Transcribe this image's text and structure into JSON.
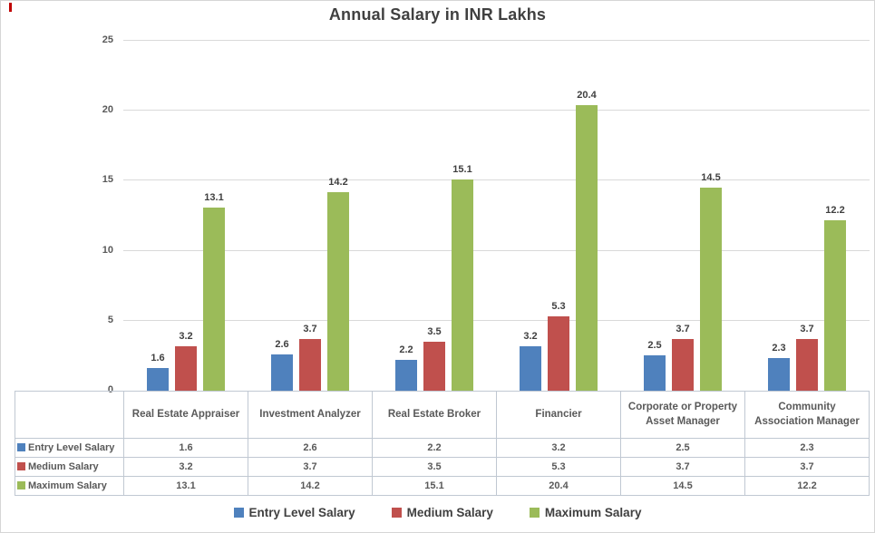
{
  "chart_data": {
    "type": "bar",
    "title": "Annual Salary in INR Lakhs",
    "categories": [
      "Real Estate Appraiser",
      "Investment Analyzer",
      "Real Estate Broker",
      "Financier",
      "Corporate or Property Asset Manager",
      "Community Association Manager"
    ],
    "series": [
      {
        "name": "Entry Level Salary",
        "color": "#4F81BD",
        "values": [
          1.6,
          2.6,
          2.2,
          3.2,
          2.5,
          2.3
        ]
      },
      {
        "name": "Medium Salary",
        "color": "#C0504D",
        "values": [
          3.2,
          3.7,
          3.5,
          5.3,
          3.7,
          3.7
        ]
      },
      {
        "name": "Maximum Salary",
        "color": "#9BBB59",
        "values": [
          13.1,
          14.2,
          15.1,
          20.4,
          14.5,
          12.2
        ]
      }
    ],
    "xlabel": "",
    "ylabel": "",
    "ylim": [
      0,
      25
    ],
    "ytick_step": 5,
    "grid": true,
    "data_labels": true,
    "data_table": true,
    "legend_position": "bottom"
  },
  "colors": {
    "gridline": "#D9D9D9",
    "axis_text": "#595959",
    "title_text": "#404040",
    "table_border": "#C0C8D2",
    "marker_red": "#C00000"
  }
}
